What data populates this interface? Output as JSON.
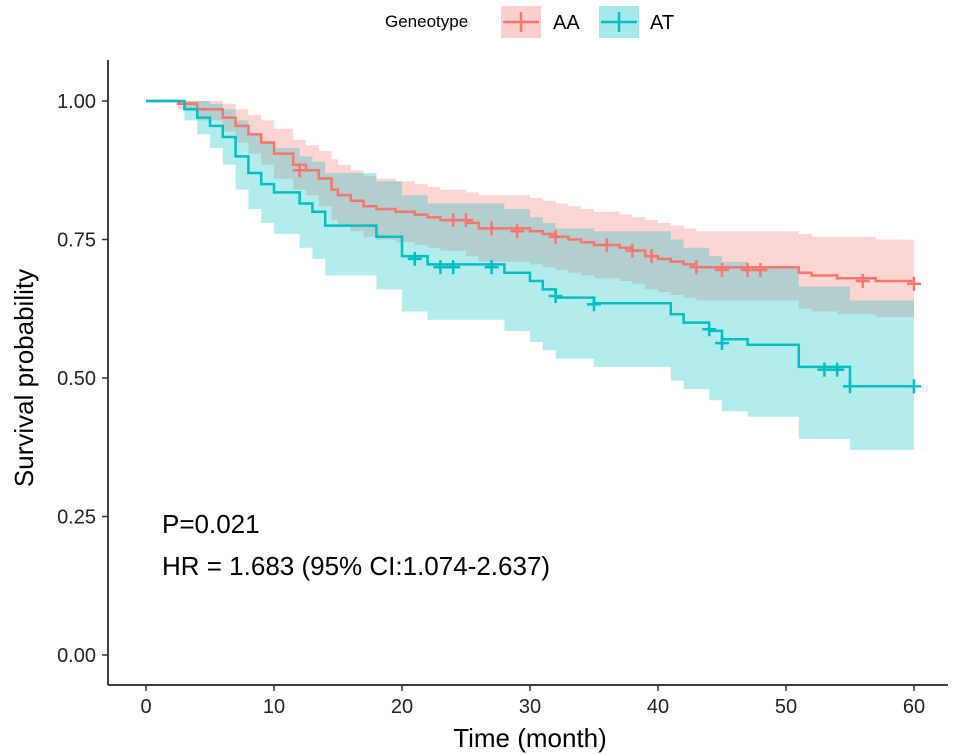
{
  "chart_data": {
    "type": "line",
    "subtype": "kaplan-meier",
    "title": "",
    "xlabel": "Time (month)",
    "ylabel": "Survival probability",
    "xlim": [
      0,
      60
    ],
    "ylim": [
      0,
      1
    ],
    "xticks": [
      0,
      10,
      20,
      30,
      40,
      50,
      60
    ],
    "xtick_labels": [
      "0",
      "10",
      "20",
      "30",
      "40",
      "50",
      "60"
    ],
    "yticks": [
      0,
      0.25,
      0.5,
      0.75,
      1.0
    ],
    "ytick_labels": [
      "0.00",
      "0.25",
      "0.50",
      "0.75",
      "1.00"
    ],
    "grid": false,
    "legend": {
      "title": "Geneotype",
      "position": "top",
      "entries": [
        "AA",
        "AT"
      ]
    },
    "annotations": [
      "P=0.021",
      "HR = 1.683 (95% CI:1.074-2.637)"
    ],
    "series": [
      {
        "name": "AA",
        "color": "#F8766D",
        "band_color": "#F8766D",
        "steps": [
          [
            0,
            1.0
          ],
          [
            2.5,
            0.995
          ],
          [
            4,
            0.985
          ],
          [
            6,
            0.97
          ],
          [
            7,
            0.955
          ],
          [
            8,
            0.94
          ],
          [
            9,
            0.925
          ],
          [
            10,
            0.905
          ],
          [
            11.5,
            0.885
          ],
          [
            12.5,
            0.875
          ],
          [
            13.5,
            0.86
          ],
          [
            14.5,
            0.84
          ],
          [
            15,
            0.83
          ],
          [
            16,
            0.82
          ],
          [
            17,
            0.81
          ],
          [
            18,
            0.805
          ],
          [
            19.5,
            0.8
          ],
          [
            21,
            0.795
          ],
          [
            22,
            0.79
          ],
          [
            23,
            0.785
          ],
          [
            25,
            0.78
          ],
          [
            26,
            0.77
          ],
          [
            30,
            0.765
          ],
          [
            31,
            0.76
          ],
          [
            32,
            0.755
          ],
          [
            33,
            0.75
          ],
          [
            34,
            0.745
          ],
          [
            35,
            0.74
          ],
          [
            37,
            0.735
          ],
          [
            38,
            0.73
          ],
          [
            39,
            0.72
          ],
          [
            40,
            0.715
          ],
          [
            41,
            0.71
          ],
          [
            42,
            0.705
          ],
          [
            43,
            0.7
          ],
          [
            51,
            0.69
          ],
          [
            52,
            0.685
          ],
          [
            54,
            0.68
          ],
          [
            57,
            0.675
          ],
          [
            60,
            0.675
          ]
        ],
        "lower": [
          [
            0,
            1.0
          ],
          [
            2.5,
            0.985
          ],
          [
            4,
            0.965
          ],
          [
            6,
            0.945
          ],
          [
            7,
            0.925
          ],
          [
            8,
            0.905
          ],
          [
            9,
            0.885
          ],
          [
            10,
            0.86
          ],
          [
            11.5,
            0.84
          ],
          [
            12.5,
            0.83
          ],
          [
            13.5,
            0.81
          ],
          [
            14.5,
            0.785
          ],
          [
            15,
            0.775
          ],
          [
            16,
            0.765
          ],
          [
            17,
            0.755
          ],
          [
            18,
            0.75
          ],
          [
            19.5,
            0.745
          ],
          [
            21,
            0.74
          ],
          [
            22,
            0.735
          ],
          [
            23,
            0.73
          ],
          [
            25,
            0.72
          ],
          [
            26,
            0.71
          ],
          [
            30,
            0.705
          ],
          [
            31,
            0.7
          ],
          [
            32,
            0.695
          ],
          [
            33,
            0.69
          ],
          [
            34,
            0.685
          ],
          [
            35,
            0.68
          ],
          [
            37,
            0.675
          ],
          [
            38,
            0.67
          ],
          [
            39,
            0.66
          ],
          [
            40,
            0.655
          ],
          [
            41,
            0.65
          ],
          [
            42,
            0.645
          ],
          [
            43,
            0.64
          ],
          [
            51,
            0.625
          ],
          [
            52,
            0.62
          ],
          [
            54,
            0.615
          ],
          [
            57,
            0.61
          ],
          [
            60,
            0.61
          ]
        ],
        "upper": [
          [
            0,
            1.0
          ],
          [
            2.5,
            1.0
          ],
          [
            4,
            1.0
          ],
          [
            6,
            0.995
          ],
          [
            7,
            0.985
          ],
          [
            8,
            0.975
          ],
          [
            9,
            0.965
          ],
          [
            10,
            0.95
          ],
          [
            11.5,
            0.93
          ],
          [
            12.5,
            0.92
          ],
          [
            13.5,
            0.91
          ],
          [
            14.5,
            0.895
          ],
          [
            15,
            0.885
          ],
          [
            16,
            0.875
          ],
          [
            17,
            0.865
          ],
          [
            18,
            0.86
          ],
          [
            19.5,
            0.855
          ],
          [
            21,
            0.85
          ],
          [
            22,
            0.845
          ],
          [
            23,
            0.84
          ],
          [
            25,
            0.835
          ],
          [
            26,
            0.83
          ],
          [
            30,
            0.825
          ],
          [
            31,
            0.82
          ],
          [
            32,
            0.815
          ],
          [
            33,
            0.81
          ],
          [
            34,
            0.805
          ],
          [
            35,
            0.8
          ],
          [
            37,
            0.795
          ],
          [
            38,
            0.79
          ],
          [
            39,
            0.785
          ],
          [
            40,
            0.78
          ],
          [
            41,
            0.775
          ],
          [
            42,
            0.77
          ],
          [
            43,
            0.765
          ],
          [
            51,
            0.76
          ],
          [
            52,
            0.755
          ],
          [
            54,
            0.755
          ],
          [
            57,
            0.75
          ],
          [
            60,
            0.75
          ]
        ],
        "censored": [
          [
            12,
            0.875
          ],
          [
            24,
            0.785
          ],
          [
            25,
            0.785
          ],
          [
            27,
            0.77
          ],
          [
            29,
            0.765
          ],
          [
            32,
            0.755
          ],
          [
            36,
            0.74
          ],
          [
            38,
            0.73
          ],
          [
            39.5,
            0.72
          ],
          [
            43,
            0.7
          ],
          [
            45,
            0.695
          ],
          [
            47,
            0.695
          ],
          [
            48,
            0.695
          ],
          [
            56,
            0.675
          ],
          [
            60,
            0.67
          ]
        ]
      },
      {
        "name": "AT",
        "color": "#00BFC4",
        "band_color": "#00BFC4",
        "steps": [
          [
            0,
            1.0
          ],
          [
            3,
            0.985
          ],
          [
            4,
            0.97
          ],
          [
            5,
            0.955
          ],
          [
            6,
            0.935
          ],
          [
            7,
            0.9
          ],
          [
            8,
            0.87
          ],
          [
            9,
            0.85
          ],
          [
            10,
            0.835
          ],
          [
            12,
            0.815
          ],
          [
            13,
            0.8
          ],
          [
            14,
            0.775
          ],
          [
            18,
            0.755
          ],
          [
            20,
            0.72
          ],
          [
            22,
            0.705
          ],
          [
            28,
            0.69
          ],
          [
            30,
            0.675
          ],
          [
            31,
            0.66
          ],
          [
            32,
            0.645
          ],
          [
            35,
            0.635
          ],
          [
            41,
            0.615
          ],
          [
            42,
            0.6
          ],
          [
            44,
            0.585
          ],
          [
            45,
            0.57
          ],
          [
            47,
            0.56
          ],
          [
            51,
            0.52
          ],
          [
            55,
            0.485
          ],
          [
            60,
            0.485
          ]
        ],
        "lower": [
          [
            0,
            1.0
          ],
          [
            3,
            0.965
          ],
          [
            4,
            0.94
          ],
          [
            5,
            0.915
          ],
          [
            6,
            0.885
          ],
          [
            7,
            0.84
          ],
          [
            8,
            0.805
          ],
          [
            9,
            0.78
          ],
          [
            10,
            0.76
          ],
          [
            12,
            0.735
          ],
          [
            13,
            0.715
          ],
          [
            14,
            0.685
          ],
          [
            18,
            0.66
          ],
          [
            20,
            0.62
          ],
          [
            22,
            0.605
          ],
          [
            28,
            0.585
          ],
          [
            30,
            0.565
          ],
          [
            31,
            0.55
          ],
          [
            32,
            0.535
          ],
          [
            35,
            0.52
          ],
          [
            41,
            0.495
          ],
          [
            42,
            0.48
          ],
          [
            44,
            0.46
          ],
          [
            45,
            0.44
          ],
          [
            47,
            0.43
          ],
          [
            51,
            0.39
          ],
          [
            55,
            0.37
          ],
          [
            60,
            0.37
          ]
        ],
        "upper": [
          [
            0,
            1.0
          ],
          [
            3,
            1.0
          ],
          [
            4,
            1.0
          ],
          [
            5,
            0.995
          ],
          [
            6,
            0.985
          ],
          [
            7,
            0.965
          ],
          [
            8,
            0.94
          ],
          [
            9,
            0.925
          ],
          [
            10,
            0.915
          ],
          [
            12,
            0.9
          ],
          [
            13,
            0.89
          ],
          [
            14,
            0.87
          ],
          [
            18,
            0.855
          ],
          [
            20,
            0.83
          ],
          [
            22,
            0.815
          ],
          [
            28,
            0.805
          ],
          [
            30,
            0.79
          ],
          [
            31,
            0.78
          ],
          [
            32,
            0.77
          ],
          [
            35,
            0.765
          ],
          [
            41,
            0.75
          ],
          [
            42,
            0.735
          ],
          [
            44,
            0.72
          ],
          [
            45,
            0.71
          ],
          [
            47,
            0.7
          ],
          [
            51,
            0.665
          ],
          [
            55,
            0.64
          ],
          [
            60,
            0.64
          ]
        ],
        "censored": [
          [
            21,
            0.715
          ],
          [
            23,
            0.7
          ],
          [
            24,
            0.7
          ],
          [
            27,
            0.7
          ],
          [
            32,
            0.648
          ],
          [
            35,
            0.633
          ],
          [
            44,
            0.588
          ],
          [
            45,
            0.563
          ],
          [
            53,
            0.515
          ],
          [
            54,
            0.515
          ],
          [
            55,
            0.485
          ],
          [
            60,
            0.485
          ]
        ]
      }
    ]
  }
}
